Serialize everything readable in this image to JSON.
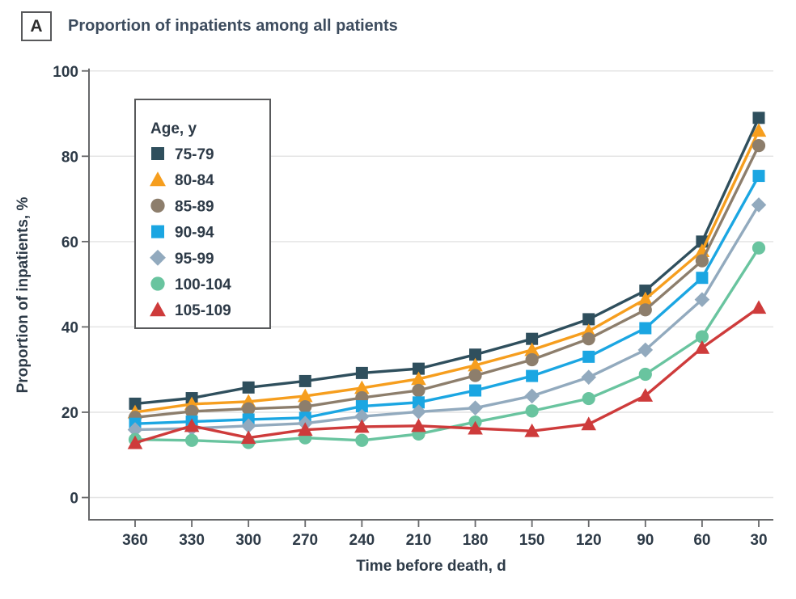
{
  "panel": {
    "label": "A",
    "title": "Proportion of inpatients among all patients"
  },
  "chart_data": {
    "type": "line",
    "x": [
      360,
      330,
      300,
      270,
      240,
      210,
      180,
      150,
      120,
      90,
      60,
      30
    ],
    "xlabel": "Time before death, d",
    "ylabel": "Proportion of inpatients, %",
    "ylim": [
      0,
      100
    ],
    "y_ticks": [
      0,
      20,
      40,
      60,
      80,
      100
    ],
    "grid": "horizontal",
    "legend_title": "Age, y",
    "legend_position": "upper-left",
    "series": [
      {
        "name": "75-79",
        "marker": "square",
        "color": "#2F4F5D",
        "values": [
          22.0,
          23.3,
          25.8,
          27.3,
          29.2,
          30.2,
          33.5,
          37.2,
          41.8,
          48.5,
          60.0,
          89.0
        ]
      },
      {
        "name": "80-84",
        "marker": "triangle",
        "color": "#F69E1E",
        "values": [
          20.0,
          21.9,
          22.5,
          23.8,
          25.7,
          27.8,
          31.0,
          34.6,
          39.0,
          46.5,
          57.8,
          86.0
        ]
      },
      {
        "name": "85-89",
        "marker": "circle",
        "color": "#8D7E6C",
        "values": [
          18.8,
          20.2,
          20.8,
          21.3,
          23.4,
          25.1,
          28.6,
          32.3,
          37.2,
          44.0,
          55.5,
          82.5
        ]
      },
      {
        "name": "90-94",
        "marker": "square",
        "color": "#1BA6E2",
        "values": [
          17.3,
          17.8,
          18.3,
          18.7,
          21.4,
          22.3,
          25.1,
          28.5,
          33.0,
          39.7,
          51.5,
          75.4
        ]
      },
      {
        "name": "95-99",
        "marker": "diamond",
        "color": "#92AABE",
        "values": [
          15.9,
          16.2,
          16.8,
          17.4,
          19.0,
          20.1,
          21.0,
          23.8,
          28.2,
          34.6,
          46.4,
          68.6
        ]
      },
      {
        "name": "100-104",
        "marker": "circle",
        "color": "#69C49F",
        "values": [
          13.6,
          13.4,
          12.9,
          14.0,
          13.4,
          14.9,
          17.7,
          20.3,
          23.2,
          28.9,
          37.7,
          58.5
        ]
      },
      {
        "name": "105-109",
        "marker": "triangle",
        "color": "#CE3B3B",
        "values": [
          12.8,
          16.8,
          14.0,
          15.9,
          16.6,
          16.8,
          16.2,
          15.6,
          17.2,
          23.9,
          35.1,
          44.5
        ]
      }
    ]
  }
}
